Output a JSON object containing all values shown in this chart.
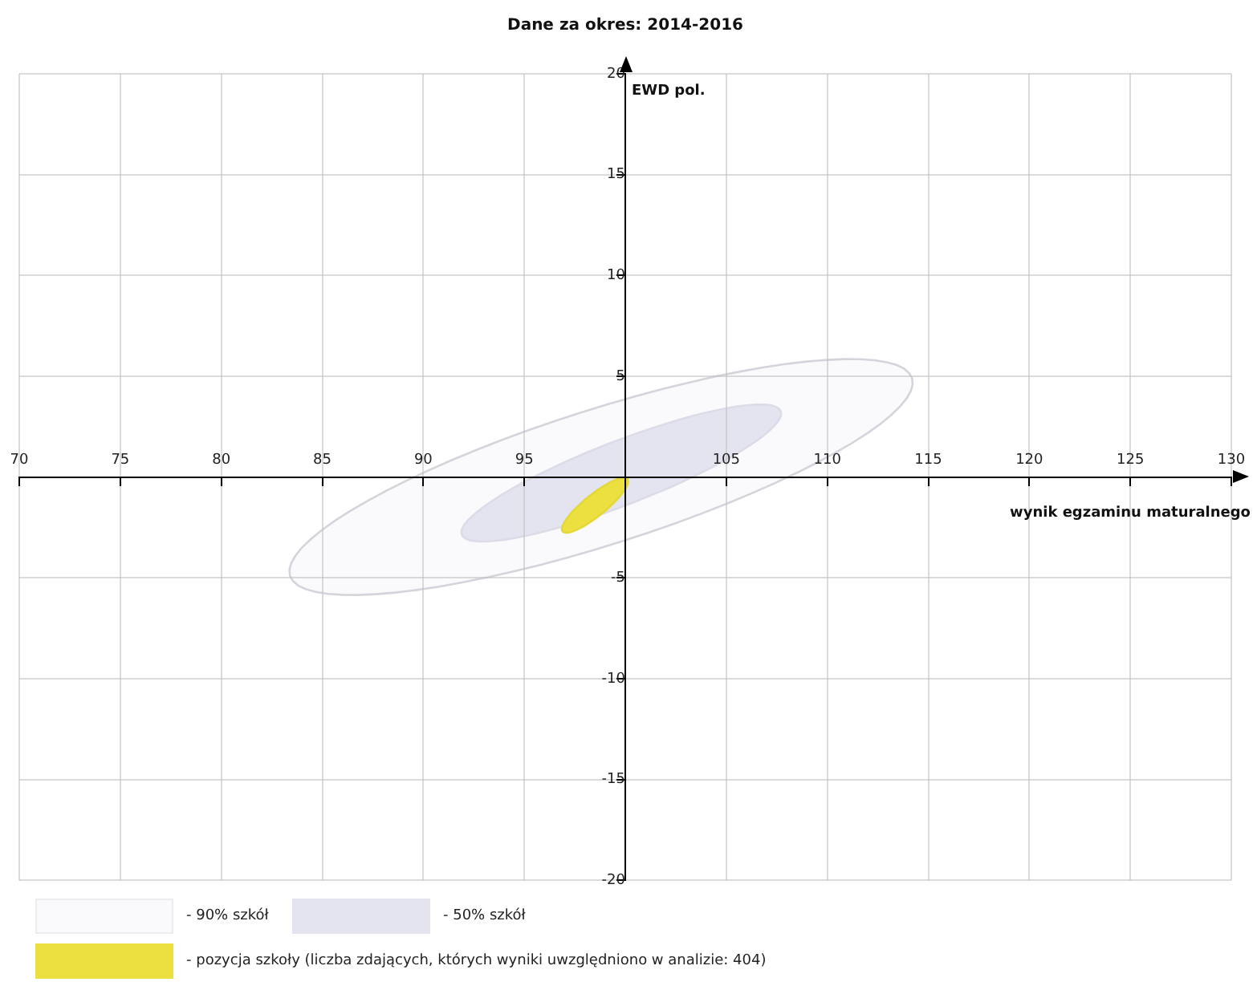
{
  "chart_data": {
    "type": "scatter",
    "title": "Dane za okres: 2014-2016",
    "xlabel": "wynik egzaminu maturalnego",
    "ylabel": "EWD pol.",
    "xlim": [
      70,
      130
    ],
    "xticks": [
      70,
      75,
      80,
      85,
      90,
      95,
      105,
      110,
      115,
      120,
      125,
      130
    ],
    "ylim": [
      -20,
      20
    ],
    "yticks": [
      -20,
      -15,
      -10,
      -5,
      5,
      10,
      15,
      20
    ],
    "grid": true,
    "annotations": [
      "- 90% szkół",
      "- 50% szkół",
      "- pozycja szkoły (liczba zdających, których wyniki uwzględniono w analizie: 404)"
    ]
  }
}
